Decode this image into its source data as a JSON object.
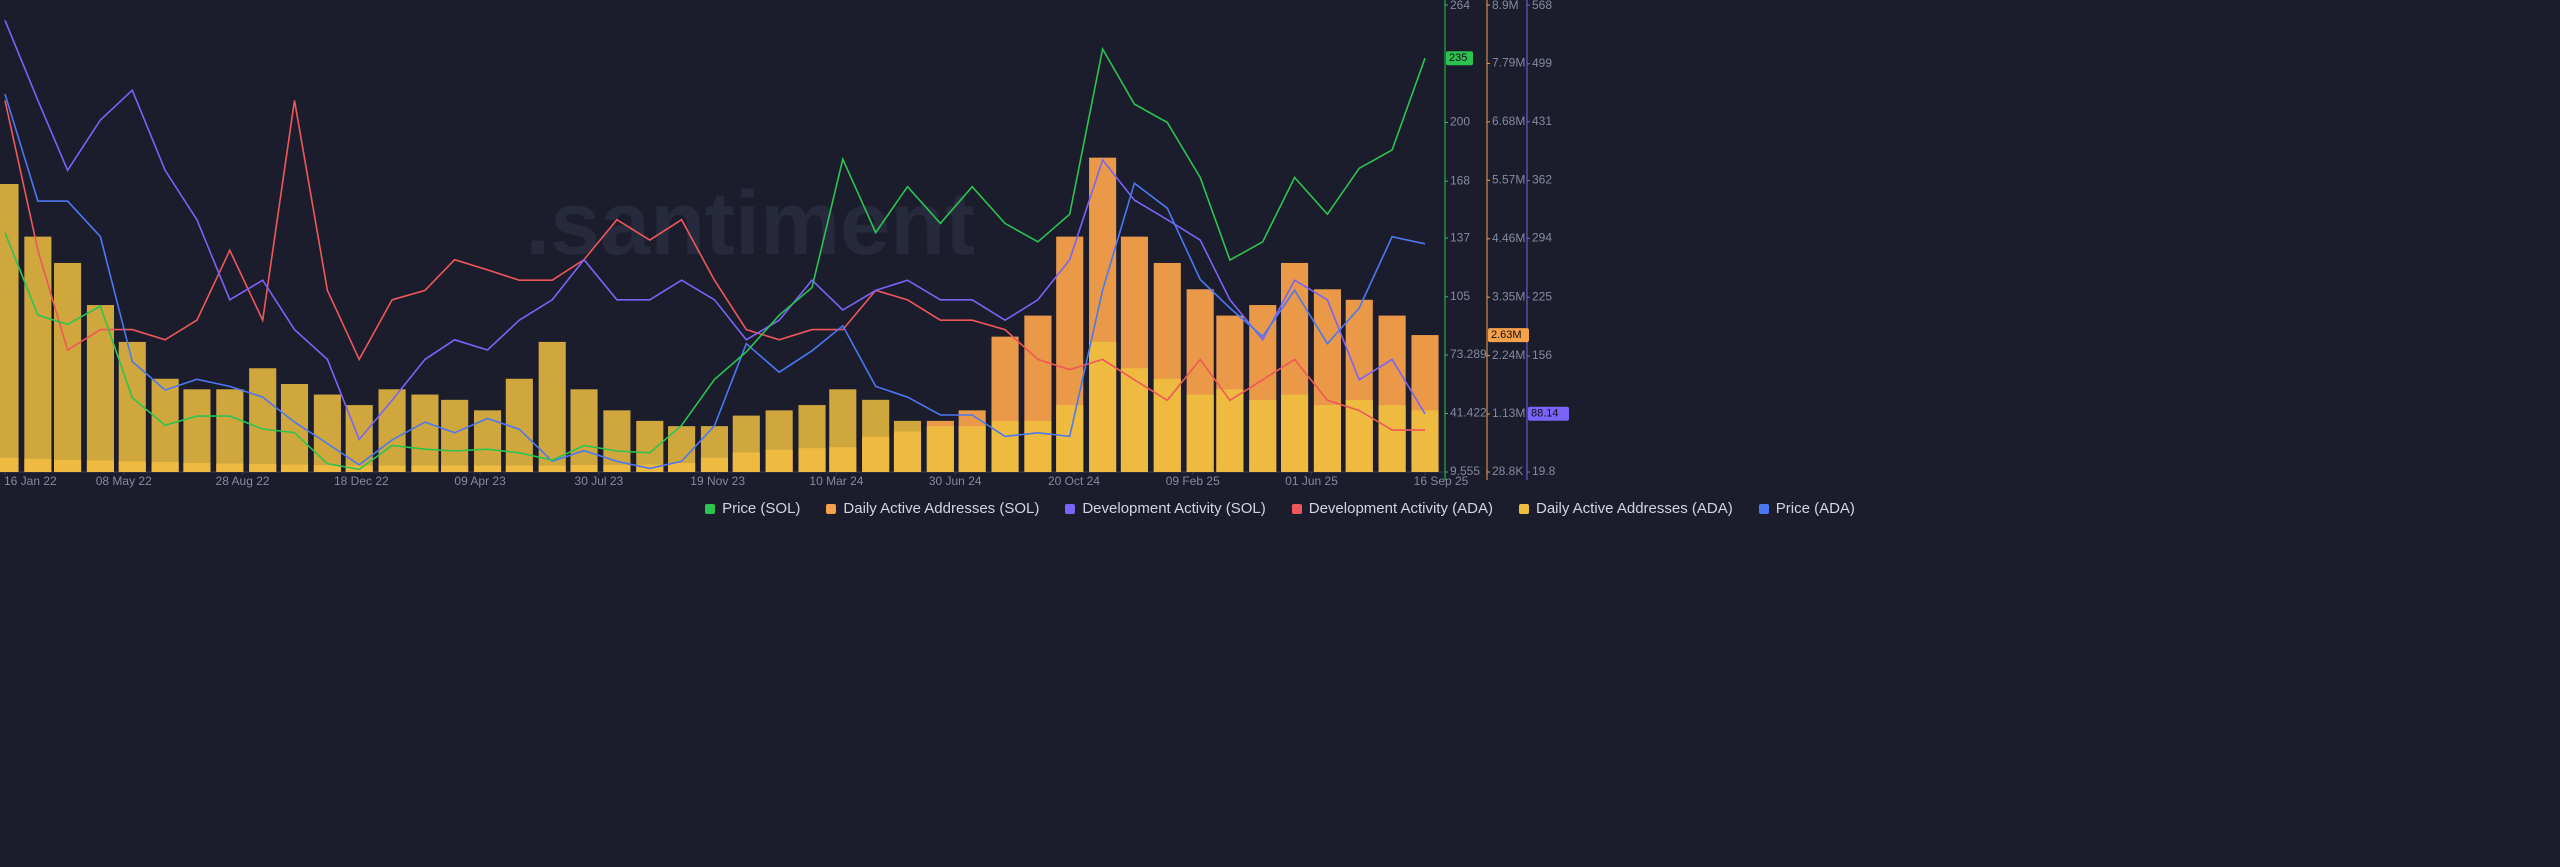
{
  "chart_data": {
    "type": "combo",
    "watermark": ".santiment",
    "x": [
      "2022-01-16",
      "2022-02-16",
      "2022-03-16",
      "2022-04-16",
      "2022-05-16",
      "2022-06-16",
      "2022-07-16",
      "2022-08-16",
      "2022-09-16",
      "2022-10-16",
      "2022-11-16",
      "2022-12-16",
      "2023-01-16",
      "2023-02-16",
      "2023-03-16",
      "2023-04-16",
      "2023-05-16",
      "2023-06-16",
      "2023-07-16",
      "2023-08-16",
      "2023-09-16",
      "2023-10-16",
      "2023-11-16",
      "2023-12-16",
      "2024-01-16",
      "2024-02-16",
      "2024-03-16",
      "2024-04-16",
      "2024-05-16",
      "2024-06-16",
      "2024-07-16",
      "2024-08-16",
      "2024-09-16",
      "2024-10-16",
      "2024-11-16",
      "2024-12-16",
      "2025-01-16",
      "2025-02-16",
      "2025-03-16",
      "2025-04-16",
      "2025-05-16",
      "2025-06-16",
      "2025-07-16",
      "2025-08-16",
      "2025-09-16"
    ],
    "xlim": [
      "2022-01-16",
      "2025-09-16"
    ],
    "xticks": [
      {
        "value": "2022-01-16",
        "label": "16 Jan 22"
      },
      {
        "value": "2022-05-08",
        "label": "08 May 22"
      },
      {
        "value": "2022-08-28",
        "label": "28 Aug 22"
      },
      {
        "value": "2022-12-18",
        "label": "18 Dec 22"
      },
      {
        "value": "2023-04-09",
        "label": "09 Apr 23"
      },
      {
        "value": "2023-07-30",
        "label": "30 Jul 23"
      },
      {
        "value": "2023-11-19",
        "label": "19 Nov 23"
      },
      {
        "value": "2024-03-10",
        "label": "10 Mar 24"
      },
      {
        "value": "2024-06-30",
        "label": "30 Jun 24"
      },
      {
        "value": "2024-10-20",
        "label": "20 Oct 24"
      },
      {
        "value": "2025-02-09",
        "label": "09 Feb 25"
      },
      {
        "value": "2025-06-01",
        "label": "01 Jun 25"
      },
      {
        "value": "2025-09-16",
        "label": "16 Sep 25"
      }
    ],
    "ylim": [
      9.555,
      264
    ],
    "yticks": [
      9.555,
      41.422,
      73.289,
      105,
      137,
      168,
      200,
      264
    ],
    "y2lim": [
      28800,
      8900000
    ],
    "y2ticks": [
      {
        "value": 28800,
        "label": "28.8K"
      },
      {
        "value": 1130000,
        "label": "1.13M"
      },
      {
        "value": 2240000,
        "label": "2.24M"
      },
      {
        "value": 3350000,
        "label": "3.35M"
      },
      {
        "value": 4460000,
        "label": "4.46M"
      },
      {
        "value": 5570000,
        "label": "5.57M"
      },
      {
        "value": 6680000,
        "label": "6.68M"
      },
      {
        "value": 7790000,
        "label": "7.79M"
      },
      {
        "value": 8900000,
        "label": "8.9M"
      }
    ],
    "y3lim": [
      19.8,
      568
    ],
    "y3ticks": [
      19.8,
      156,
      225,
      294,
      362,
      431,
      499,
      568
    ],
    "y4lim": [
      0.24,
      1.55
    ],
    "series": [
      {
        "name": "Price (SOL)",
        "color": "#2bc451",
        "axis": "y",
        "kind": "line",
        "badge": "235",
        "values": [
          140,
          95,
          90,
          100,
          50,
          35,
          40,
          40,
          33,
          31,
          14,
          11,
          24,
          22,
          21,
          22,
          20,
          16,
          24,
          21,
          20,
          35,
          60,
          75,
          95,
          110,
          180,
          140,
          165,
          145,
          165,
          145,
          135,
          150,
          240,
          210,
          200,
          170,
          125,
          135,
          170,
          150,
          175,
          185,
          235
        ]
      },
      {
        "name": "Daily Active Addresses (SOL)",
        "color": "#f5a04a",
        "axis": "y2",
        "kind": "bar",
        "badge": "2.63M",
        "values": [
          300000,
          280000,
          260000,
          250000,
          230000,
          220000,
          200000,
          190000,
          180000,
          170000,
          160000,
          150000,
          150000,
          150000,
          150000,
          150000,
          150000,
          150000,
          160000,
          160000,
          170000,
          200000,
          300000,
          400000,
          450000,
          480000,
          500000,
          700000,
          800000,
          1000000,
          1200000,
          2600000,
          3000000,
          4500000,
          6000000,
          4500000,
          4000000,
          3500000,
          3000000,
          3200000,
          4000000,
          3500000,
          3300000,
          3000000,
          2630000
        ]
      },
      {
        "name": "Development Activity (SOL)",
        "color": "#7a63f7",
        "axis": "y3",
        "kind": "line",
        "badge": "88.14",
        "values": [
          550,
          456,
          374,
          433,
          468,
          374,
          316,
          222,
          245,
          187,
          152,
          58,
          104,
          152,
          175,
          163,
          198,
          222,
          269,
          222,
          222,
          245,
          222,
          175,
          198,
          245,
          210,
          233,
          245,
          222,
          222,
          198,
          222,
          269,
          386,
          339,
          316,
          292,
          222,
          175,
          245,
          222,
          128,
          152,
          88.14
        ]
      },
      {
        "name": "Development Activity (ADA)",
        "color": "#f0575a",
        "axis": "y3",
        "kind": "line",
        "values": [
          456,
          280,
          163,
          187,
          187,
          175,
          198,
          280,
          198,
          456,
          233,
          152,
          222,
          233,
          269,
          257,
          245,
          245,
          269,
          316,
          292,
          316,
          245,
          187,
          175,
          187,
          187,
          233,
          222,
          198,
          198,
          187,
          152,
          140,
          152,
          128,
          104,
          152,
          104,
          128,
          152,
          104,
          92,
          69,
          69
        ]
      },
      {
        "name": "Daily Active Addresses (ADA)",
        "color": "#eebf3f",
        "axis": "y2",
        "kind": "bar",
        "values": [
          5500000,
          4500000,
          4000000,
          3200000,
          2500000,
          1800000,
          1600000,
          1600000,
          2000000,
          1700000,
          1500000,
          1300000,
          1600000,
          1500000,
          1400000,
          1200000,
          1800000,
          2500000,
          1600000,
          1200000,
          1000000,
          900000,
          900000,
          1100000,
          1200000,
          1300000,
          1600000,
          1400000,
          1000000,
          900000,
          900000,
          1000000,
          1000000,
          1300000,
          2500000,
          2000000,
          1800000,
          1500000,
          1600000,
          1400000,
          1500000,
          1300000,
          1400000,
          1300000,
          1200000
        ]
      },
      {
        "name": "Price (ADA)",
        "color": "#4b78f2",
        "axis": "y4",
        "kind": "line",
        "values": [
          1.3,
          1.0,
          1.0,
          0.9,
          0.55,
          0.47,
          0.5,
          0.48,
          0.45,
          0.38,
          0.32,
          0.26,
          0.33,
          0.38,
          0.35,
          0.39,
          0.36,
          0.27,
          0.3,
          0.27,
          0.25,
          0.27,
          0.37,
          0.6,
          0.52,
          0.58,
          0.65,
          0.48,
          0.45,
          0.4,
          0.4,
          0.34,
          0.35,
          0.34,
          0.75,
          1.05,
          0.98,
          0.78,
          0.7,
          0.62,
          0.75,
          0.6,
          0.7,
          0.9,
          0.88
        ]
      }
    ]
  }
}
